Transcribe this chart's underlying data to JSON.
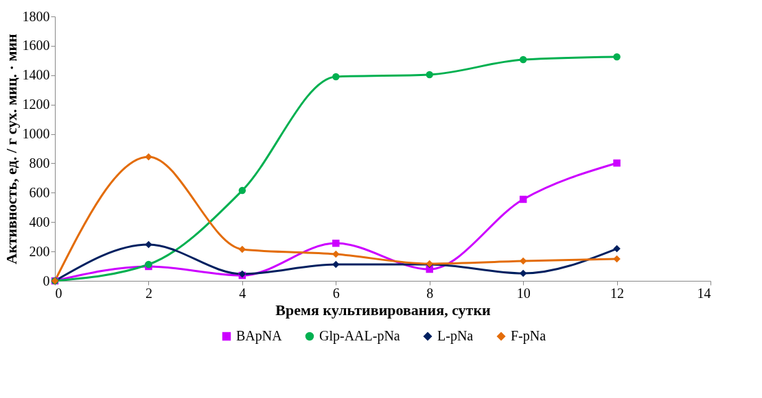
{
  "chart_data": {
    "type": "line",
    "xlabel": "Время культивирования, сутки",
    "ylabel": "Активность, ед. / г сух. миц. · мин",
    "x": [
      0,
      2,
      4,
      6,
      8,
      10,
      12
    ],
    "xlim": [
      0,
      14
    ],
    "xticks": [
      0,
      2,
      4,
      6,
      8,
      10,
      12,
      14
    ],
    "ylim": [
      0,
      1800
    ],
    "yticks": [
      0,
      200,
      400,
      600,
      800,
      1000,
      1200,
      1400,
      1600,
      1800
    ],
    "grid": false,
    "legend": "bottom",
    "series": [
      {
        "name": "BApNA",
        "color": "#cc00ff",
        "marker": "square",
        "values": [
          0,
          98,
          37,
          256,
          79,
          555,
          802
        ]
      },
      {
        "name": "Glp-AAL-pNa",
        "color": "#00b050",
        "marker": "circle",
        "values": [
          0,
          112,
          615,
          1390,
          1404,
          1506,
          1525
        ]
      },
      {
        "name": "L-pNa",
        "color": "#002060",
        "marker": "diamond",
        "values": [
          0,
          247,
          47,
          112,
          112,
          51,
          219
        ]
      },
      {
        "name": "F-pNa",
        "color": "#e36c09",
        "marker": "diamond",
        "values": [
          0,
          844,
          215,
          182,
          117,
          135,
          149
        ]
      }
    ]
  }
}
